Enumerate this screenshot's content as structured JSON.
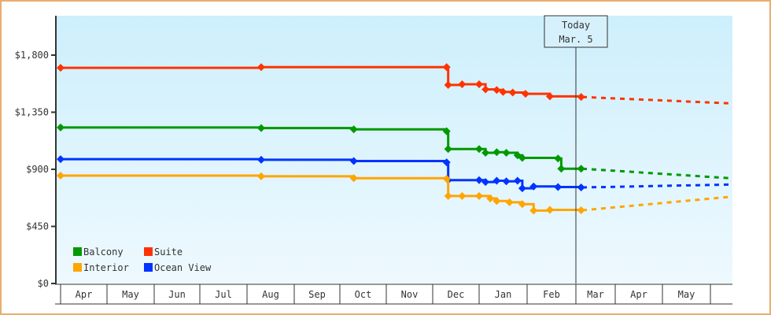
{
  "chart_data": {
    "type": "line",
    "title": "",
    "xlabel": "",
    "ylabel": "",
    "ylim": [
      0,
      2100
    ],
    "yticks": [
      {
        "value": 0,
        "label": "$0"
      },
      {
        "value": 450,
        "label": "$450"
      },
      {
        "value": 900,
        "label": "$900"
      },
      {
        "value": 1350,
        "label": "$1,350"
      },
      {
        "value": 1800,
        "label": "$1,800"
      }
    ],
    "x_months": [
      "Apr",
      "May",
      "Jun",
      "Jul",
      "Aug",
      "Sep",
      "Oct",
      "Nov",
      "Dec",
      "Jan",
      "Feb",
      "Mar",
      "Apr",
      "May"
    ],
    "grid": false,
    "legend_position": "lower-left inside",
    "today_marker": {
      "line1": "Today",
      "line2": "Mar. 5"
    },
    "series": [
      {
        "name": "Suite",
        "color": "#ff3300",
        "points": [
          {
            "date": "Apr 1",
            "value": 1700
          },
          {
            "date": "Aug 10",
            "value": 1705
          },
          {
            "date": "Dec 10",
            "value": 1705
          },
          {
            "date": "Dec 11",
            "value": 1565
          },
          {
            "date": "Dec 20",
            "value": 1570
          },
          {
            "date": "Jan 1",
            "value": 1570
          },
          {
            "date": "Jan 5",
            "value": 1530
          },
          {
            "date": "Jan 12",
            "value": 1525
          },
          {
            "date": "Jan 16",
            "value": 1510
          },
          {
            "date": "Jan 22",
            "value": 1505
          },
          {
            "date": "Jan 30",
            "value": 1495
          },
          {
            "date": "Feb 15",
            "value": 1475
          },
          {
            "date": "Mar 5",
            "value": 1470
          }
        ],
        "projection": [
          {
            "date": "Mar 5",
            "value": 1470
          },
          {
            "date": "Jun 1",
            "value": 1420
          }
        ]
      },
      {
        "name": "Balcony",
        "color": "#009900",
        "points": [
          {
            "date": "Apr 1",
            "value": 1230
          },
          {
            "date": "Aug 10",
            "value": 1225
          },
          {
            "date": "Oct 10",
            "value": 1215
          },
          {
            "date": "Dec 10",
            "value": 1200
          },
          {
            "date": "Dec 11",
            "value": 1060
          },
          {
            "date": "Jan 1",
            "value": 1060
          },
          {
            "date": "Jan 5",
            "value": 1030
          },
          {
            "date": "Jan 12",
            "value": 1035
          },
          {
            "date": "Jan 18",
            "value": 1030
          },
          {
            "date": "Jan 25",
            "value": 1010
          },
          {
            "date": "Jan 28",
            "value": 990
          },
          {
            "date": "Feb 20",
            "value": 985
          },
          {
            "date": "Feb 22",
            "value": 905
          },
          {
            "date": "Mar 5",
            "value": 905
          }
        ],
        "projection": [
          {
            "date": "Mar 5",
            "value": 905
          },
          {
            "date": "Jun 1",
            "value": 830
          }
        ]
      },
      {
        "name": "Ocean View",
        "color": "#0033ff",
        "points": [
          {
            "date": "Apr 1",
            "value": 980
          },
          {
            "date": "Aug 10",
            "value": 975
          },
          {
            "date": "Oct 10",
            "value": 965
          },
          {
            "date": "Dec 10",
            "value": 955
          },
          {
            "date": "Dec 11",
            "value": 815
          },
          {
            "date": "Jan 1",
            "value": 815
          },
          {
            "date": "Jan 5",
            "value": 800
          },
          {
            "date": "Jan 12",
            "value": 810
          },
          {
            "date": "Jan 18",
            "value": 805
          },
          {
            "date": "Jan 25",
            "value": 810
          },
          {
            "date": "Jan 28",
            "value": 750
          },
          {
            "date": "Feb 5",
            "value": 765
          },
          {
            "date": "Feb 20",
            "value": 760
          },
          {
            "date": "Mar 5",
            "value": 757
          }
        ],
        "projection": [
          {
            "date": "Mar 5",
            "value": 757
          },
          {
            "date": "Jun 1",
            "value": 780
          }
        ]
      },
      {
        "name": "Interior",
        "color": "#ffa500",
        "points": [
          {
            "date": "Apr 1",
            "value": 850
          },
          {
            "date": "Aug 10",
            "value": 845
          },
          {
            "date": "Oct 10",
            "value": 830
          },
          {
            "date": "Dec 10",
            "value": 825
          },
          {
            "date": "Dec 11",
            "value": 690
          },
          {
            "date": "Dec 20",
            "value": 690
          },
          {
            "date": "Jan 1",
            "value": 690
          },
          {
            "date": "Jan 8",
            "value": 670
          },
          {
            "date": "Jan 12",
            "value": 650
          },
          {
            "date": "Jan 20",
            "value": 640
          },
          {
            "date": "Jan 28",
            "value": 625
          },
          {
            "date": "Feb 5",
            "value": 575
          },
          {
            "date": "Feb 15",
            "value": 580
          },
          {
            "date": "Mar 5",
            "value": 577
          }
        ],
        "projection": [
          {
            "date": "Mar 5",
            "value": 577
          },
          {
            "date": "Jun 1",
            "value": 683
          }
        ]
      }
    ]
  },
  "legend": [
    {
      "label": "Balcony",
      "color": "#009900"
    },
    {
      "label": "Suite",
      "color": "#ff3300"
    },
    {
      "label": "Interior",
      "color": "#ffa500"
    },
    {
      "label": "Ocean View",
      "color": "#0033ff"
    }
  ]
}
